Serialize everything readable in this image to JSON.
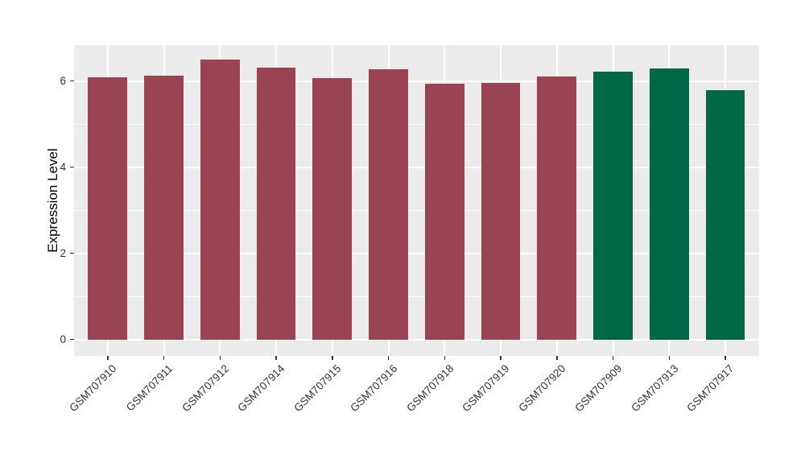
{
  "chart_data": {
    "type": "bar",
    "title": "",
    "xlabel": "",
    "ylabel": "Expression Level",
    "categories": [
      "GSM707910",
      "GSM707911",
      "GSM707912",
      "GSM707914",
      "GSM707915",
      "GSM707916",
      "GSM707918",
      "GSM707919",
      "GSM707920",
      "GSM707909",
      "GSM707913",
      "GSM707917"
    ],
    "values": [
      6.08,
      6.13,
      6.5,
      6.32,
      6.06,
      6.27,
      5.93,
      5.96,
      6.11,
      6.22,
      6.3,
      5.78
    ],
    "bar_colors": [
      "#9A4453",
      "#9A4453",
      "#9A4453",
      "#9A4453",
      "#9A4453",
      "#9A4453",
      "#9A4453",
      "#9A4453",
      "#9A4453",
      "#006847",
      "#006847",
      "#006847"
    ],
    "group_palette": {
      "main": "#9A4453",
      "highlight": "#006847"
    },
    "yticks": [
      0,
      2,
      4,
      6
    ],
    "minor_yticks": [
      1,
      3,
      5
    ],
    "ylim": [
      0,
      6.85
    ],
    "grid": "on",
    "legend": "none",
    "x_tick_rotation": 45,
    "panel_bg": "#EBEBEB",
    "grid_color": "#FFFFFF",
    "axis_text_color": "#333333"
  }
}
